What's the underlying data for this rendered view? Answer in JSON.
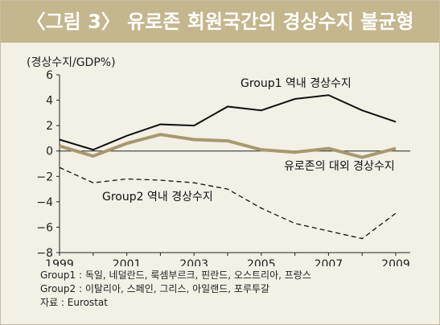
{
  "header": {
    "title": "〈그림 3〉 유로존 회원국간의 경상수지 불균형"
  },
  "unit_label": "(경상수지/GDP%)",
  "chart_data": {
    "type": "line",
    "title": "〈그림 3〉 유로존 회원국간의 경상수지 불균형",
    "ylabel": "(경상수지/GDP%)",
    "x": [
      1999,
      2000,
      2001,
      2002,
      2003,
      2004,
      2005,
      2006,
      2007,
      2008,
      2009
    ],
    "x_tick_labels": [
      "1999",
      "2001",
      "2003",
      "2005",
      "2007",
      "2009"
    ],
    "x_tick_values": [
      1999,
      2001,
      2003,
      2005,
      2007,
      2009
    ],
    "y_ticks": [
      6,
      4,
      2,
      0,
      -2,
      -4,
      -6,
      -8
    ],
    "y_tick_labels": [
      "6",
      "4",
      "2",
      "0",
      "−2",
      "−4",
      "−6",
      "−8"
    ],
    "xlim": [
      1999,
      2009
    ],
    "ylim": [
      -8,
      6
    ],
    "grid": false,
    "series": [
      {
        "name": "Group1 역내 경상수지",
        "style": "solid",
        "color": "#111111",
        "values": [
          0.9,
          0.1,
          1.2,
          2.1,
          2.0,
          3.5,
          3.2,
          4.1,
          4.4,
          3.2,
          2.3
        ]
      },
      {
        "name": "유로존의 대외 경상수지",
        "style": "thick",
        "color": "#a89870",
        "values": [
          0.4,
          -0.4,
          0.6,
          1.3,
          0.9,
          0.8,
          0.1,
          -0.1,
          0.2,
          -0.5,
          0.2
        ]
      },
      {
        "name": "Group2 역내 경상수지",
        "style": "dashed",
        "color": "#111111",
        "values": [
          -1.3,
          -2.5,
          -2.2,
          -2.3,
          -2.5,
          -3.0,
          -4.5,
          -5.7,
          -6.3,
          -6.9,
          -4.9
        ]
      }
    ]
  },
  "notes": [
    "Group1 : 독일, 네덜란드, 룩셈부르크, 핀란드, 오스트리아, 프랑스",
    "Group2 : 이탈리아, 스페인, 그리스, 아일랜드, 포루투갈",
    "자료 : Eurostat"
  ],
  "colors": {
    "header_bg": "#c4b68d",
    "panel_bg": "#f3f0e6",
    "eurozone_line": "#a89870"
  }
}
